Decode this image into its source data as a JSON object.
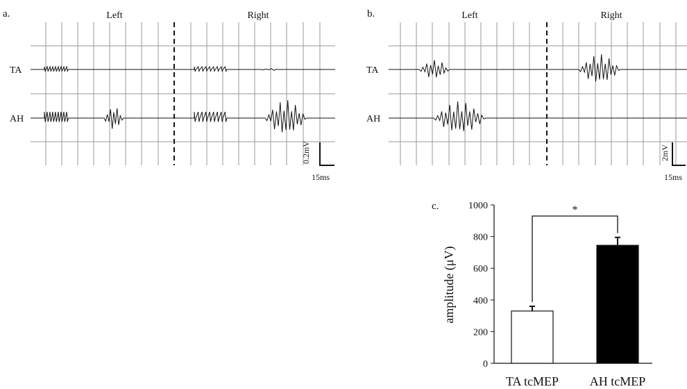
{
  "panels": {
    "a": {
      "label": "a.",
      "left_label": "Left",
      "right_label": "Right",
      "rows": [
        "TA",
        "AH"
      ],
      "scale_v": "0.2mV",
      "scale_h": "15ms"
    },
    "b": {
      "label": "b.",
      "left_label": "Left",
      "right_label": "Right",
      "rows": [
        "TA",
        "AH"
      ],
      "scale_v": "2mV",
      "scale_h": "15ms"
    }
  },
  "chart_data": {
    "type": "bar",
    "panel_label": "c.",
    "categories": [
      "TA tcMEP",
      "AH tcMEP"
    ],
    "values": [
      330,
      745
    ],
    "errors": [
      30,
      50
    ],
    "bar_colors": [
      "#ffffff",
      "#000000"
    ],
    "ylabel": "amplitude (μV)",
    "xlabel": "",
    "ylim": [
      0,
      1000
    ],
    "yticks": [
      0,
      200,
      400,
      600,
      800,
      1000
    ],
    "ytick_labels": [
      "0",
      "200",
      "400",
      "600",
      "800",
      "1000"
    ],
    "significance": "*"
  }
}
